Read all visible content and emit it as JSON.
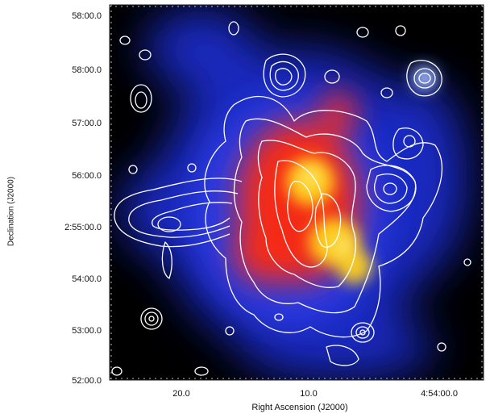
{
  "axes": {
    "ylabel": "Declination (J2000)",
    "xlabel": "Right Ascension (J2000)",
    "yticks": [
      "58:00.0",
      "58:00.0",
      "57:00.0",
      "56:00.0",
      "2:55:00.0",
      "54:00.0",
      "53:00.0",
      "52:00.0"
    ],
    "xticks": [
      "20.0",
      "10.0",
      "4:54:00.0"
    ]
  },
  "colors": {
    "background": "#000000",
    "diffuse_emission": "#1a2fd6",
    "core_emission": "#ff2a10",
    "peak_emission": "#ffe020",
    "contours": "#ffffff"
  }
}
